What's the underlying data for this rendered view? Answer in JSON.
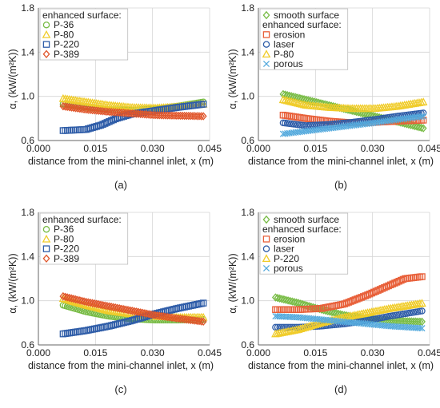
{
  "colors": {
    "green": "#77bb44",
    "yellow": "#f0cc2a",
    "blue": "#2f5da8",
    "red": "#e0552a",
    "orange": "#e8603a",
    "cyan": "#55aadd"
  },
  "chart_data": [
    {
      "type": "scatter",
      "panel_label": "(a)",
      "xlabel": "distance from the mini-channel inlet, x (m)",
      "ylabel": "α, (kW/(m²K))",
      "xlim": [
        0,
        0.045
      ],
      "ylim": [
        0.6,
        1.8
      ],
      "xticks": [
        "0.000",
        "0.015",
        "0.030",
        "0.045"
      ],
      "yticks": [
        "0.6",
        "1.0",
        "1.4",
        "1.8"
      ],
      "grid": true,
      "legend_position": "top-left",
      "legend_heading": "enhanced surface:",
      "series": [
        {
          "name": "P-36",
          "marker": "circle",
          "color": "#77bb44",
          "x": [
            0.0065,
            0.0125,
            0.0185,
            0.0245,
            0.0305,
            0.0365,
            0.0435
          ],
          "y": [
            0.93,
            0.9,
            0.88,
            0.875,
            0.885,
            0.91,
            0.95
          ]
        },
        {
          "name": "P-80",
          "marker": "triangle",
          "color": "#f0cc2a",
          "x": [
            0.0065,
            0.0125,
            0.0185,
            0.0245,
            0.0305,
            0.0365,
            0.0435
          ],
          "y": [
            0.98,
            0.95,
            0.92,
            0.9,
            0.895,
            0.905,
            0.93
          ]
        },
        {
          "name": "P-220",
          "marker": "square",
          "color": "#2f5da8",
          "x": [
            0.0065,
            0.0125,
            0.0165,
            0.0205,
            0.0245,
            0.0305,
            0.0365,
            0.0435
          ],
          "y": [
            0.69,
            0.7,
            0.74,
            0.8,
            0.84,
            0.87,
            0.9,
            0.93
          ]
        },
        {
          "name": "P-389",
          "marker": "diamond",
          "color": "#e0552a",
          "x": [
            0.0065,
            0.0125,
            0.0185,
            0.0245,
            0.0305,
            0.0365,
            0.0435
          ],
          "y": [
            0.91,
            0.88,
            0.86,
            0.845,
            0.83,
            0.825,
            0.82
          ]
        }
      ]
    },
    {
      "type": "scatter",
      "panel_label": "(b)",
      "xlabel": "distance from the mini-channel inlet, x (m)",
      "ylabel": "α, (kW/(m²K))",
      "xlim": [
        0,
        0.045
      ],
      "ylim": [
        0.6,
        1.8
      ],
      "xticks": [
        "0.000",
        "0.015",
        "0.030",
        "0.045"
      ],
      "yticks": [
        "0.6",
        "1.0",
        "1.4",
        "1.8"
      ],
      "grid": true,
      "legend_position": "top-left",
      "legend_heading": "enhanced surface:",
      "series": [
        {
          "name": "smooth surface",
          "marker": "diamond",
          "color": "#77bb44",
          "x": [
            0.0065,
            0.0125,
            0.0185,
            0.0245,
            0.0305,
            0.0365,
            0.0435
          ],
          "y": [
            1.02,
            0.97,
            0.92,
            0.87,
            0.82,
            0.77,
            0.71
          ]
        },
        {
          "name": "erosion",
          "marker": "square",
          "color": "#e8603a",
          "x": [
            0.0065,
            0.0125,
            0.0185,
            0.0245,
            0.0305,
            0.0365,
            0.0435
          ],
          "y": [
            0.83,
            0.8,
            0.775,
            0.76,
            0.765,
            0.775,
            0.785
          ]
        },
        {
          "name": "laser",
          "marker": "circle",
          "color": "#2f5da8",
          "x": [
            0.0065,
            0.0125,
            0.0185,
            0.0245,
            0.0305,
            0.0365,
            0.0435
          ],
          "y": [
            0.76,
            0.735,
            0.745,
            0.765,
            0.79,
            0.82,
            0.85
          ]
        },
        {
          "name": "P-80",
          "marker": "triangle",
          "color": "#f0cc2a",
          "x": [
            0.0065,
            0.0125,
            0.0185,
            0.0245,
            0.0305,
            0.0365,
            0.0435
          ],
          "y": [
            0.97,
            0.92,
            0.9,
            0.89,
            0.89,
            0.91,
            0.95
          ]
        },
        {
          "name": "porous",
          "marker": "x",
          "color": "#55aadd",
          "x": [
            0.0065,
            0.0125,
            0.0185,
            0.0245,
            0.0305,
            0.0365,
            0.0435
          ],
          "y": [
            0.66,
            0.685,
            0.71,
            0.735,
            0.76,
            0.79,
            0.82
          ]
        }
      ]
    },
    {
      "type": "scatter",
      "panel_label": "(c)",
      "xlabel": "distance from the mini-channel inlet, x (m)",
      "ylabel": "α, (kW/(m²K))",
      "xlim": [
        0,
        0.045
      ],
      "ylim": [
        0.6,
        1.8
      ],
      "xticks": [
        "0.000",
        "0.015",
        "0.030",
        "0.045"
      ],
      "yticks": [
        "0.6",
        "1.0",
        "1.4",
        "1.8"
      ],
      "grid": true,
      "legend_position": "top-left",
      "legend_heading": "enhanced surface:",
      "series": [
        {
          "name": "P-36",
          "marker": "circle",
          "color": "#77bb44",
          "x": [
            0.0065,
            0.0125,
            0.0185,
            0.0245,
            0.0305,
            0.0365,
            0.0435
          ],
          "y": [
            0.96,
            0.9,
            0.86,
            0.835,
            0.825,
            0.825,
            0.83
          ]
        },
        {
          "name": "P-80",
          "marker": "triangle",
          "color": "#f0cc2a",
          "x": [
            0.0065,
            0.0125,
            0.0185,
            0.0245,
            0.0305,
            0.0365,
            0.0435
          ],
          "y": [
            1.02,
            0.96,
            0.91,
            0.88,
            0.86,
            0.85,
            0.85
          ]
        },
        {
          "name": "P-220",
          "marker": "square",
          "color": "#2f5da8",
          "x": [
            0.0065,
            0.0125,
            0.0185,
            0.0245,
            0.0305,
            0.0365,
            0.0435
          ],
          "y": [
            0.7,
            0.73,
            0.77,
            0.82,
            0.88,
            0.93,
            0.98
          ]
        },
        {
          "name": "P-389",
          "marker": "diamond",
          "color": "#e0552a",
          "x": [
            0.0065,
            0.0125,
            0.0185,
            0.0245,
            0.0305,
            0.0365,
            0.0435
          ],
          "y": [
            1.04,
            0.99,
            0.95,
            0.91,
            0.87,
            0.84,
            0.81
          ]
        }
      ]
    },
    {
      "type": "scatter",
      "panel_label": "(d)",
      "xlabel": "distance from the mini-channel inlet, x (m)",
      "ylabel": "α, (kW/(m²K))",
      "xlim": [
        0,
        0.045
      ],
      "ylim": [
        0.6,
        1.8
      ],
      "xticks": [
        "0.000",
        "0.015",
        "0.030",
        "0.045"
      ],
      "yticks": [
        "0.6",
        "1.0",
        "1.4",
        "1.8"
      ],
      "grid": true,
      "legend_position": "top-left",
      "legend_heading": "enhanced surface:",
      "series": [
        {
          "name": "smooth surface",
          "marker": "diamond",
          "color": "#77bb44",
          "x": [
            0.0045,
            0.0105,
            0.0165,
            0.0225,
            0.0285,
            0.0345,
            0.0435
          ],
          "y": [
            1.03,
            0.98,
            0.92,
            0.87,
            0.84,
            0.82,
            0.81
          ]
        },
        {
          "name": "erosion",
          "marker": "square",
          "color": "#e8603a",
          "x": [
            0.0045,
            0.0105,
            0.0165,
            0.0225,
            0.0285,
            0.0345,
            0.0385,
            0.0435
          ],
          "y": [
            0.92,
            0.92,
            0.93,
            0.97,
            1.05,
            1.14,
            1.2,
            1.22
          ]
        },
        {
          "name": "laser",
          "marker": "circle",
          "color": "#2f5da8",
          "x": [
            0.0045,
            0.0105,
            0.0165,
            0.0225,
            0.0285,
            0.0345,
            0.0435
          ],
          "y": [
            0.76,
            0.76,
            0.77,
            0.79,
            0.82,
            0.86,
            0.91
          ]
        },
        {
          "name": "P-220",
          "marker": "triangle",
          "color": "#f0cc2a",
          "x": [
            0.0045,
            0.0105,
            0.0165,
            0.0225,
            0.0285,
            0.0345,
            0.0435
          ],
          "y": [
            0.7,
            0.74,
            0.8,
            0.85,
            0.89,
            0.93,
            0.98
          ]
        },
        {
          "name": "porous",
          "marker": "x",
          "color": "#55aadd",
          "x": [
            0.0045,
            0.0105,
            0.0165,
            0.0225,
            0.0285,
            0.0345,
            0.0435
          ],
          "y": [
            0.86,
            0.85,
            0.83,
            0.81,
            0.79,
            0.77,
            0.75
          ]
        }
      ]
    }
  ]
}
